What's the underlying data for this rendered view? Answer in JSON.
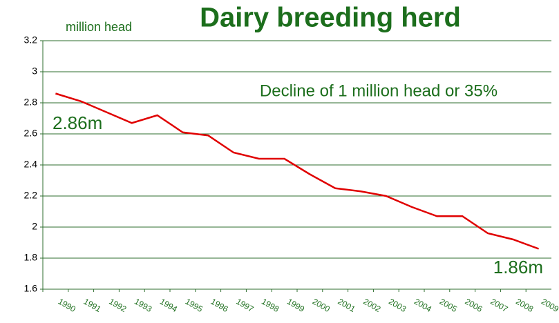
{
  "chart_data": {
    "type": "line",
    "title": "Dairy breeding herd",
    "y_label": "million head",
    "annotations": [
      "Decline of 1 million head or 35%",
      "2.86m",
      "1.86m"
    ],
    "categories": [
      "1990",
      "1991",
      "1992",
      "1993",
      "1994",
      "1995",
      "1996",
      "1997",
      "1998",
      "1999",
      "2000",
      "2001",
      "2002",
      "2003",
      "2004",
      "2005",
      "2006",
      "2007",
      "2008",
      "2009"
    ],
    "series": [
      {
        "name": "Dairy breeding herd",
        "color": "#e00000",
        "values": [
          2.86,
          2.81,
          2.74,
          2.67,
          2.72,
          2.61,
          2.59,
          2.48,
          2.44,
          2.44,
          2.34,
          2.25,
          2.23,
          2.2,
          2.13,
          2.07,
          2.07,
          1.96,
          1.92,
          1.86
        ]
      }
    ],
    "ylim": [
      1.6,
      3.2
    ],
    "yticks": [
      1.6,
      1.8,
      2,
      2.2,
      2.4,
      2.6,
      2.8,
      3,
      3.2
    ],
    "grid": true
  }
}
